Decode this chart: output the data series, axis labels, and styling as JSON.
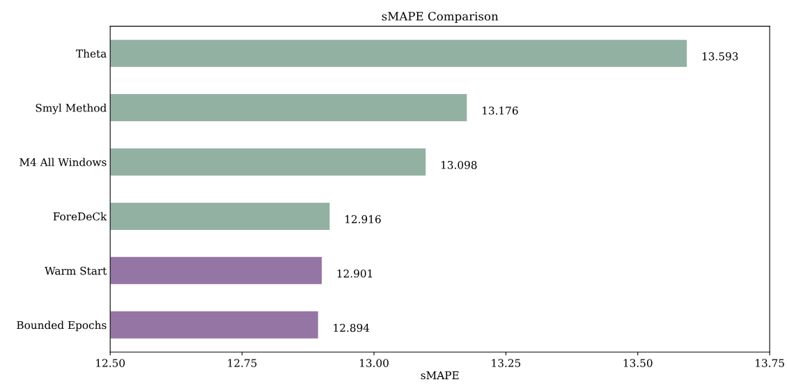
{
  "chart_data": {
    "type": "bar",
    "orientation": "horizontal",
    "title": "sMAPE Comparison",
    "xlabel": "sMAPE",
    "categories": [
      "Theta",
      "Smyl Method",
      "M4 All Windows",
      "ForeDeCk",
      "Warm Start",
      "Bounded Epochs"
    ],
    "values": [
      13.593,
      13.176,
      13.098,
      12.916,
      12.901,
      12.894
    ],
    "colors": [
      "#93b1a3",
      "#93b1a3",
      "#93b1a3",
      "#93b1a3",
      "#9575a4",
      "#9575a4"
    ],
    "xlim": [
      12.5,
      13.75
    ],
    "xticks": [
      {
        "value": 12.5,
        "label": "12.50"
      },
      {
        "value": 12.75,
        "label": "12.75"
      },
      {
        "value": 13.0,
        "label": "13.00"
      },
      {
        "value": 13.25,
        "label": "13.25"
      },
      {
        "value": 13.5,
        "label": "13.50"
      },
      {
        "value": 13.75,
        "label": "13.75"
      }
    ],
    "data_labels": true
  }
}
